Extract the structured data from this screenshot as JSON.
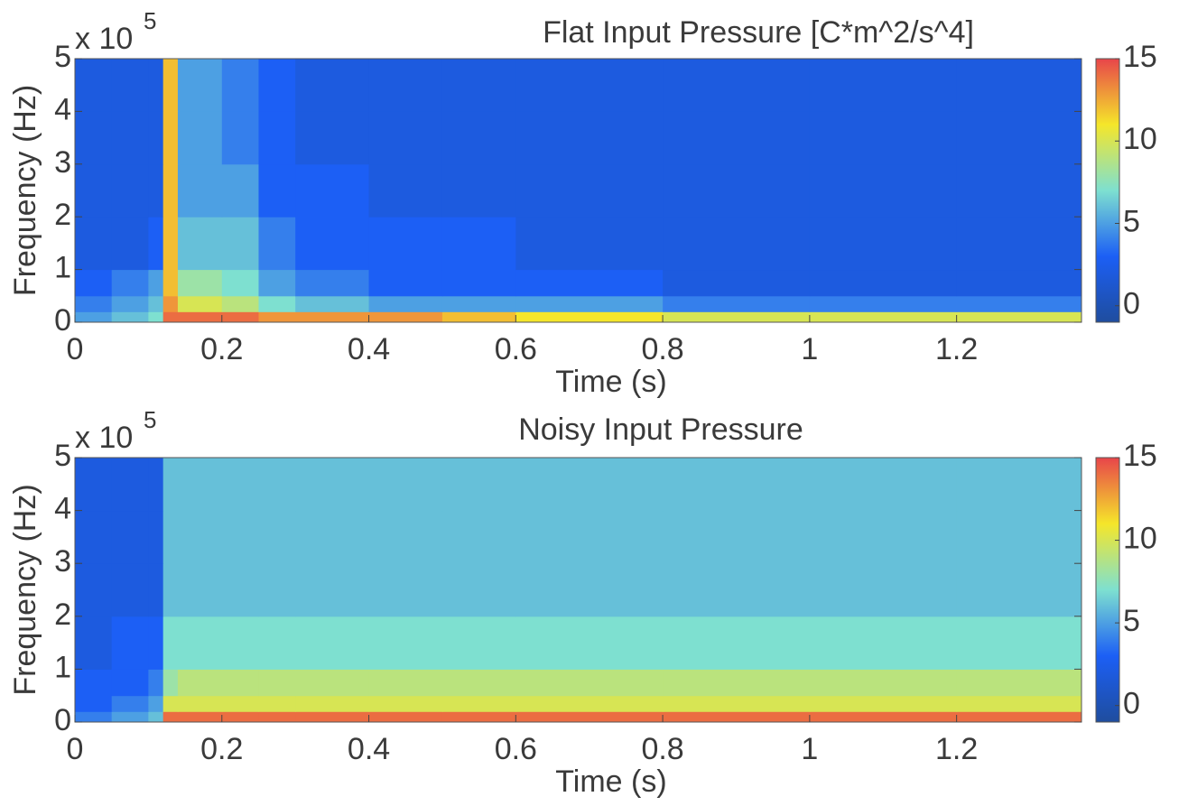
{
  "chart_data": [
    {
      "type": "heatmap",
      "title": "Flat Input Pressure [C*m^2/s^4]",
      "x_label": "Time (s)",
      "y_label": "Frequency (Hz)",
      "y_multiplier": {
        "base": "x 10",
        "exponent": "5"
      },
      "xlim": [
        0,
        1.37
      ],
      "xticks": [
        0,
        0.2,
        0.4,
        0.6,
        0.8,
        1,
        1.2
      ],
      "ylim": [
        0,
        5
      ],
      "yticks": [
        0,
        1,
        2,
        3,
        4,
        5
      ],
      "xbins": [
        0,
        0.05,
        0.1,
        0.12,
        0.14,
        0.2,
        0.25,
        0.3,
        0.4,
        0.5,
        0.6,
        0.8,
        1.0,
        1.2,
        1.37
      ],
      "ybins": [
        0,
        0.2,
        0.5,
        1,
        2,
        3,
        4,
        5
      ],
      "z": [
        [
          5,
          6,
          7,
          14,
          14,
          14,
          13,
          13,
          13,
          12,
          11,
          10,
          10,
          10
        ],
        [
          4,
          5,
          6,
          13,
          10,
          9,
          7,
          6,
          5,
          5,
          5,
          4,
          4,
          4
        ],
        [
          3,
          4,
          5,
          12,
          8,
          7,
          5,
          4,
          3,
          3,
          3,
          2,
          2,
          2
        ],
        [
          2,
          2,
          3,
          12,
          6,
          6,
          4,
          3,
          3,
          3,
          2,
          2,
          2,
          2
        ],
        [
          2,
          2,
          2,
          12,
          5,
          5,
          3,
          3,
          2,
          2,
          2,
          2,
          2,
          2
        ],
        [
          2,
          2,
          2,
          12,
          5,
          4,
          3,
          2,
          2,
          2,
          2,
          2,
          2,
          2
        ],
        [
          2,
          2,
          2,
          12,
          5,
          4,
          3,
          2,
          2,
          2,
          2,
          2,
          2,
          2
        ]
      ],
      "clim": [
        -1,
        15
      ],
      "cticks": [
        0,
        5,
        10,
        15
      ],
      "colormap": [
        "#1f4d9e",
        "#1c5ff5",
        "#7ee0d0",
        "#f5e62a",
        "#e8454a"
      ]
    },
    {
      "type": "heatmap",
      "title": "Noisy Input Pressure",
      "x_label": "Time (s)",
      "y_label": "Frequency (Hz)",
      "y_multiplier": {
        "base": "x 10",
        "exponent": "5"
      },
      "xlim": [
        0,
        1.37
      ],
      "xticks": [
        0,
        0.2,
        0.4,
        0.6,
        0.8,
        1,
        1.2
      ],
      "ylim": [
        0,
        5
      ],
      "yticks": [
        0,
        1,
        2,
        3,
        4,
        5
      ],
      "xbins": [
        0,
        0.05,
        0.1,
        0.12,
        0.14,
        0.2,
        0.25,
        0.3,
        0.4,
        0.5,
        0.6,
        0.8,
        1.0,
        1.2,
        1.37
      ],
      "ybins": [
        0,
        0.2,
        0.5,
        1,
        2,
        3,
        4,
        5
      ],
      "z": [
        [
          4,
          5,
          6,
          14,
          14,
          14,
          14,
          14,
          14,
          14,
          14,
          14,
          14,
          14
        ],
        [
          3,
          4,
          5,
          10,
          10,
          10,
          10,
          10,
          10,
          10,
          10,
          10,
          10,
          10
        ],
        [
          3,
          3,
          4,
          8,
          9,
          9,
          9,
          9,
          9,
          9,
          9,
          9,
          9,
          9
        ],
        [
          2,
          3,
          3,
          7,
          7,
          7,
          7,
          7,
          7,
          7,
          7,
          7,
          7,
          7
        ],
        [
          2,
          2,
          2,
          6,
          6,
          6,
          6,
          6,
          6,
          6,
          6,
          6,
          6,
          6
        ],
        [
          2,
          2,
          2,
          6,
          6,
          6,
          6,
          6,
          6,
          6,
          6,
          6,
          6,
          6
        ],
        [
          2,
          2,
          2,
          6,
          6,
          6,
          6,
          6,
          6,
          6,
          6,
          6,
          6,
          6
        ]
      ],
      "clim": [
        -1,
        15
      ],
      "cticks": [
        0,
        5,
        10,
        15
      ],
      "colormap": [
        "#1f4d9e",
        "#1c5ff5",
        "#7ee0d0",
        "#f5e62a",
        "#e8454a"
      ]
    }
  ]
}
